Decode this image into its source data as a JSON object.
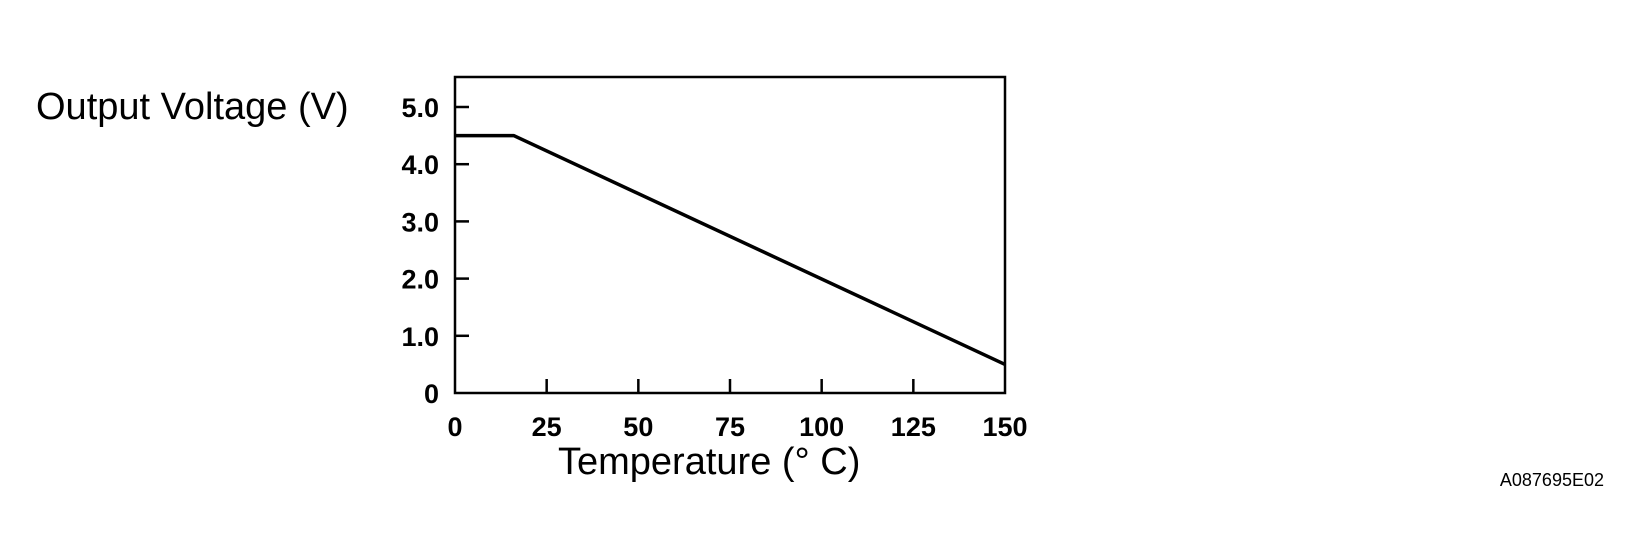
{
  "figure_code": "A087695E02",
  "chart_data": {
    "type": "line",
    "title": "",
    "xlabel": "Temperature (° C)",
    "ylabel": "Output Voltage (V)",
    "xlim": [
      0,
      150
    ],
    "ylim": [
      0,
      5.5
    ],
    "grid": false,
    "x_ticks": [
      0,
      25,
      50,
      75,
      100,
      125,
      150
    ],
    "x_tick_labels": [
      "0",
      "25",
      "50",
      "75",
      "100",
      "125",
      "150"
    ],
    "y_ticks": [
      0,
      1,
      2,
      3,
      4,
      5
    ],
    "y_tick_labels": [
      "0",
      "1.0",
      "2.0",
      "3.0",
      "4.0",
      "5.0"
    ],
    "series": [
      {
        "x": [
          0,
          16,
          150
        ],
        "y": [
          4.5,
          4.5,
          0.5
        ]
      }
    ],
    "line_color": "#000000"
  }
}
